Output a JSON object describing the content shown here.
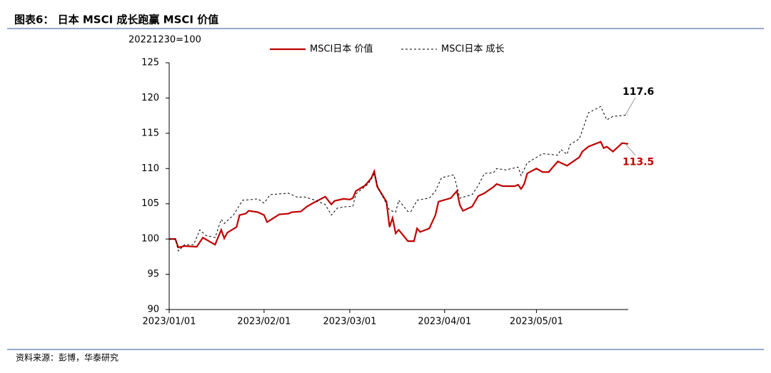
{
  "title": "图表6： 日本 MSCI 成长跑赢 MSCI 价值",
  "source": "资料来源：彭博，华泰研究",
  "chart_data": {
    "type": "line",
    "y_axis_label": "20221230=100",
    "xlim": [
      "2023/01/01",
      "2023/05/31"
    ],
    "xticks": [
      "2023/01/01",
      "2023/02/01",
      "2023/03/01",
      "2023/04/01",
      "2023/05/01"
    ],
    "ylim": [
      90,
      125
    ],
    "yticks": [
      90,
      95,
      100,
      105,
      110,
      115,
      120,
      125
    ],
    "grid": false,
    "legend": "top",
    "series": [
      {
        "name": "MSCI日本 价值",
        "color": "#c00000",
        "dash": "solid",
        "x": [
          "2023/01/01",
          "2023/01/03",
          "2023/01/04",
          "2023/01/06",
          "2023/01/10",
          "2023/01/12",
          "2023/01/16",
          "2023/01/18",
          "2023/01/19",
          "2023/01/20",
          "2023/01/23",
          "2023/01/24",
          "2023/01/26",
          "2023/01/27",
          "2023/01/30",
          "2023/02/01",
          "2023/02/02",
          "2023/02/06",
          "2023/02/09",
          "2023/02/10",
          "2023/02/13",
          "2023/02/15",
          "2023/02/17",
          "2023/02/21",
          "2023/02/23",
          "2023/02/24",
          "2023/02/27",
          "2023/03/01",
          "2023/03/02",
          "2023/03/03",
          "2023/03/06",
          "2023/03/08",
          "2023/03/09",
          "2023/03/10",
          "2023/03/13",
          "2023/03/14",
          "2023/03/15",
          "2023/03/16",
          "2023/03/17",
          "2023/03/20",
          "2023/03/22",
          "2023/03/23",
          "2023/03/24",
          "2023/03/27",
          "2023/03/29",
          "2023/03/30",
          "2023/04/03",
          "2023/04/05",
          "2023/04/06",
          "2023/04/07",
          "2023/04/10",
          "2023/04/12",
          "2023/04/14",
          "2023/04/17",
          "2023/04/18",
          "2023/04/20",
          "2023/04/24",
          "2023/04/25",
          "2023/04/26",
          "2023/04/27",
          "2023/04/28",
          "2023/05/01",
          "2023/05/03",
          "2023/05/05",
          "2023/05/08",
          "2023/05/11",
          "2023/05/15",
          "2023/05/16",
          "2023/05/18",
          "2023/05/22",
          "2023/05/23",
          "2023/05/24",
          "2023/05/26",
          "2023/05/29",
          "2023/05/31"
        ],
        "values": [
          100,
          100,
          98.8,
          99.0,
          98.9,
          100.2,
          99.2,
          101.3,
          100.1,
          100.9,
          101.7,
          103.4,
          103.6,
          104.0,
          103.8,
          103.4,
          102.4,
          103.5,
          103.6,
          103.8,
          103.9,
          104.6,
          105.1,
          106.0,
          104.9,
          105.4,
          105.7,
          105.6,
          105.8,
          106.8,
          107.6,
          108.6,
          109.6,
          107.4,
          105.3,
          101.7,
          103.0,
          100.8,
          101.3,
          99.7,
          99.7,
          101.5,
          101.0,
          101.5,
          103.4,
          105.3,
          105.8,
          106.8,
          104.8,
          104.0,
          104.6,
          106.1,
          106.5,
          107.4,
          107.8,
          107.5,
          107.5,
          107.7,
          107.1,
          107.8,
          109.3,
          110.0,
          109.5,
          109.5,
          111.0,
          110.4,
          111.6,
          112.4,
          113.1,
          113.8,
          112.9,
          113.1,
          112.4,
          113.6,
          113.5
        ]
      },
      {
        "name": "MSCI日本 成长",
        "color": "#000000",
        "dash": "dashed",
        "x": [
          "2023/01/01",
          "2023/01/03",
          "2023/01/04",
          "2023/01/06",
          "2023/01/09",
          "2023/01/11",
          "2023/01/13",
          "2023/01/16",
          "2023/01/18",
          "2023/01/19",
          "2023/01/22",
          "2023/01/25",
          "2023/01/28",
          "2023/01/30",
          "2023/02/01",
          "2023/02/03",
          "2023/02/09",
          "2023/02/12",
          "2023/02/14",
          "2023/02/17",
          "2023/02/21",
          "2023/02/23",
          "2023/02/25",
          "2023/02/28",
          "2023/03/02",
          "2023/03/03",
          "2023/03/07",
          "2023/03/09",
          "2023/03/10",
          "2023/03/14",
          "2023/03/16",
          "2023/03/17",
          "2023/03/20",
          "2023/03/21",
          "2023/03/23",
          "2023/03/27",
          "2023/03/29",
          "2023/03/31",
          "2023/04/04",
          "2023/04/06",
          "2023/04/10",
          "2023/04/12",
          "2023/04/14",
          "2023/04/17",
          "2023/04/18",
          "2023/04/21",
          "2023/04/25",
          "2023/04/26",
          "2023/04/28",
          "2023/05/03",
          "2023/05/08",
          "2023/05/09",
          "2023/05/11",
          "2023/05/12",
          "2023/05/15",
          "2023/05/16",
          "2023/05/18",
          "2023/05/22",
          "2023/05/24",
          "2023/05/26",
          "2023/05/31"
        ],
        "values": [
          100,
          100,
          98.3,
          99.2,
          99.2,
          101.3,
          100.5,
          100.2,
          102.8,
          102.2,
          103.4,
          105.5,
          105.6,
          105.7,
          105.1,
          106.3,
          106.5,
          105.9,
          106.0,
          105.6,
          104.9,
          103.4,
          104.4,
          104.6,
          104.6,
          106.4,
          107.8,
          109.2,
          107.6,
          104.1,
          103.8,
          105.5,
          103.9,
          103.9,
          105.5,
          105.8,
          106.8,
          108.7,
          109.1,
          105.8,
          106.3,
          107.6,
          109.3,
          109.4,
          110.0,
          109.8,
          110.2,
          109.0,
          110.8,
          112.1,
          111.9,
          112.7,
          112.0,
          113.4,
          114.2,
          115.4,
          117.9,
          118.8,
          116.9,
          117.4,
          117.6
        ]
      }
    ]
  }
}
